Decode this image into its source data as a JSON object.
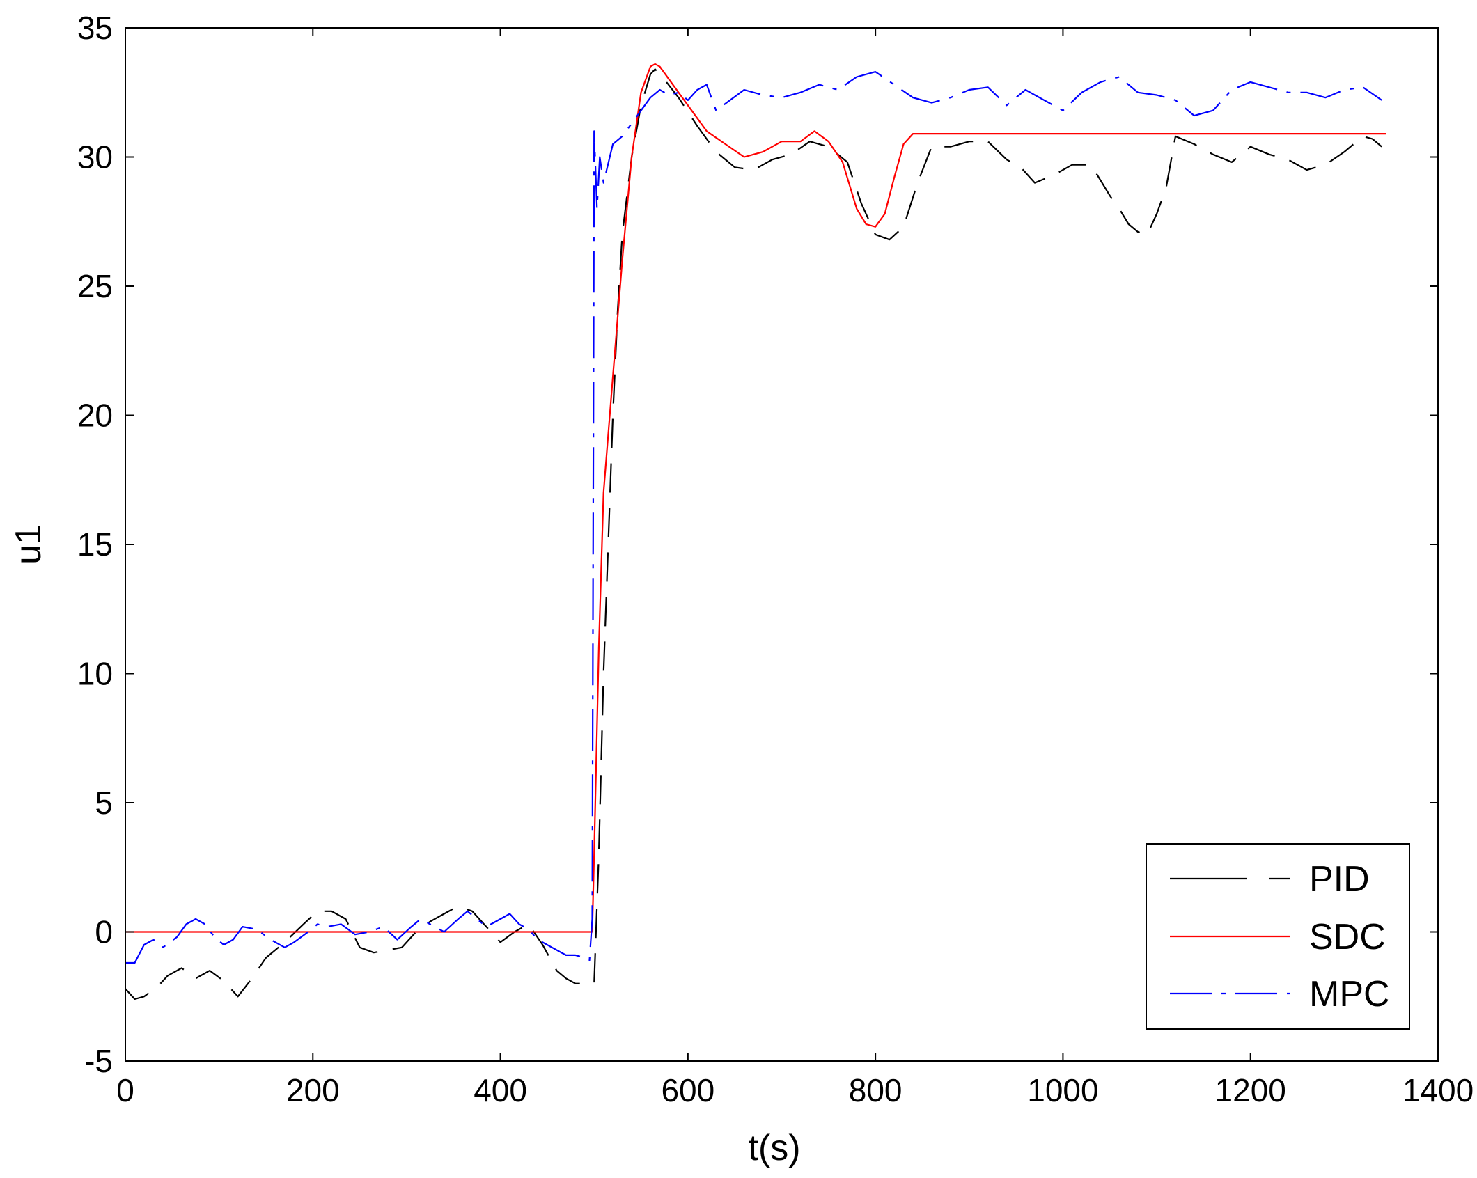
{
  "chart_data": {
    "type": "line",
    "title": "",
    "xlabel": "t(s)",
    "ylabel": "u1",
    "xlim": [
      0,
      1400
    ],
    "ylim": [
      -5,
      35
    ],
    "xticks": [
      0,
      200,
      400,
      600,
      800,
      1000,
      1200,
      1400
    ],
    "yticks": [
      -5,
      0,
      5,
      10,
      15,
      20,
      25,
      30,
      35
    ],
    "grid": false,
    "legend_position": "bottom-right",
    "series": [
      {
        "name": "PID",
        "color": "#000000",
        "style": "dashed",
        "x": [
          0,
          10,
          20,
          35,
          45,
          60,
          75,
          90,
          105,
          120,
          135,
          150,
          170,
          190,
          205,
          220,
          235,
          250,
          265,
          280,
          295,
          310,
          325,
          340,
          355,
          370,
          385,
          400,
          415,
          430,
          445,
          460,
          470,
          480,
          490,
          500,
          505,
          510,
          515,
          520,
          525,
          530,
          540,
          550,
          560,
          565,
          575,
          590,
          610,
          630,
          650,
          670,
          690,
          710,
          730,
          750,
          770,
          785,
          800,
          815,
          830,
          845,
          860,
          880,
          900,
          920,
          940,
          955,
          970,
          990,
          1010,
          1030,
          1050,
          1060,
          1070,
          1080,
          1090,
          1100,
          1110,
          1120,
          1140,
          1160,
          1180,
          1200,
          1220,
          1240,
          1260,
          1280,
          1300,
          1320,
          1330,
          1340
        ],
        "y": [
          -2.2,
          -2.6,
          -2.5,
          -2.1,
          -1.7,
          -1.4,
          -1.8,
          -1.5,
          -1.9,
          -2.5,
          -1.8,
          -1.0,
          -0.4,
          0.3,
          0.8,
          0.8,
          0.5,
          -0.6,
          -0.8,
          -0.7,
          -0.6,
          0.0,
          0.4,
          0.7,
          1.0,
          0.8,
          0.2,
          -0.4,
          0.0,
          0.3,
          -0.5,
          -1.5,
          -1.8,
          -2.0,
          -2.0,
          -2.0,
          3.0,
          10.0,
          15.0,
          20.0,
          24.0,
          27.0,
          30.0,
          32.0,
          33.2,
          33.4,
          33.0,
          32.3,
          31.2,
          30.2,
          29.6,
          29.5,
          29.9,
          30.1,
          30.6,
          30.4,
          29.8,
          28.2,
          27.0,
          26.8,
          27.3,
          29.0,
          30.4,
          30.4,
          30.6,
          30.6,
          29.9,
          29.6,
          29.0,
          29.3,
          29.7,
          29.7,
          28.5,
          28.0,
          27.4,
          27.1,
          27.0,
          27.8,
          28.8,
          30.8,
          30.5,
          30.1,
          29.8,
          30.4,
          30.1,
          29.9,
          29.5,
          29.7,
          30.2,
          30.8,
          30.7,
          30.4
        ]
      },
      {
        "name": "SDC",
        "color": "#ff0000",
        "style": "solid",
        "x": [
          0,
          498,
          500,
          505,
          510,
          520,
          530,
          540,
          550,
          560,
          565,
          570,
          580,
          600,
          620,
          640,
          660,
          670,
          680,
          700,
          720,
          735,
          750,
          765,
          780,
          790,
          800,
          810,
          820,
          830,
          840,
          1345
        ],
        "y": [
          0,
          0,
          3.0,
          11.0,
          17.0,
          21.5,
          26.0,
          30.0,
          32.5,
          33.5,
          33.6,
          33.5,
          33.0,
          32.0,
          31.0,
          30.5,
          30.0,
          30.1,
          30.2,
          30.6,
          30.6,
          31.0,
          30.6,
          29.8,
          28.0,
          27.4,
          27.3,
          27.8,
          29.2,
          30.5,
          30.9,
          30.9
        ]
      },
      {
        "name": "MPC",
        "color": "#0000ff",
        "style": "dashdot",
        "x": [
          0,
          10,
          20,
          30,
          40,
          55,
          65,
          75,
          85,
          95,
          105,
          115,
          125,
          140,
          155,
          170,
          180,
          195,
          205,
          215,
          230,
          245,
          260,
          275,
          290,
          305,
          315,
          325,
          340,
          355,
          365,
          375,
          385,
          400,
          410,
          420,
          430,
          440,
          455,
          470,
          480,
          490,
          495,
          498,
          500,
          503,
          506,
          510,
          520,
          530,
          540,
          550,
          560,
          570,
          580,
          590,
          600,
          610,
          620,
          630,
          645,
          660,
          680,
          700,
          720,
          740,
          760,
          780,
          800,
          820,
          840,
          860,
          880,
          900,
          920,
          940,
          960,
          980,
          1000,
          1020,
          1040,
          1060,
          1080,
          1100,
          1120,
          1140,
          1160,
          1180,
          1200,
          1220,
          1240,
          1260,
          1280,
          1300,
          1320,
          1340
        ],
        "y": [
          -1.2,
          -1.2,
          -0.5,
          -0.3,
          -0.6,
          -0.2,
          0.3,
          0.5,
          0.3,
          -0.2,
          -0.5,
          -0.3,
          0.2,
          0.1,
          -0.3,
          -0.6,
          -0.4,
          0.0,
          0.3,
          0.2,
          0.3,
          -0.1,
          0.0,
          0.2,
          -0.3,
          0.2,
          0.5,
          0.3,
          0.0,
          0.5,
          0.8,
          0.5,
          0.2,
          0.5,
          0.7,
          0.3,
          0.1,
          -0.3,
          -0.6,
          -0.9,
          -0.9,
          -1.0,
          -1.1,
          0.5,
          31.0,
          28.0,
          30.0,
          29.0,
          30.5,
          30.8,
          31.3,
          31.8,
          32.3,
          32.6,
          32.4,
          32.5,
          32.2,
          32.6,
          32.8,
          31.8,
          32.2,
          32.6,
          32.4,
          32.3,
          32.5,
          32.8,
          32.6,
          33.1,
          33.3,
          32.8,
          32.3,
          32.1,
          32.3,
          32.6,
          32.7,
          32.0,
          32.6,
          32.2,
          31.8,
          32.5,
          32.9,
          33.1,
          32.5,
          32.4,
          32.2,
          31.6,
          31.8,
          32.6,
          32.9,
          32.7,
          32.5,
          32.5,
          32.3,
          32.6,
          32.7,
          32.2
        ]
      }
    ]
  }
}
